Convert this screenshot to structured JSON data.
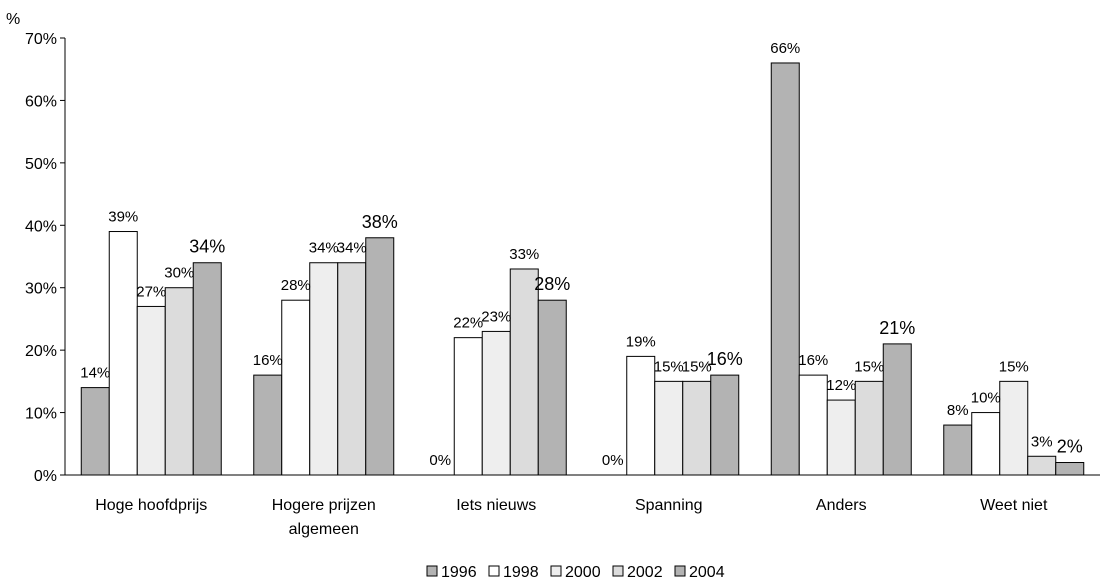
{
  "chart_data": {
    "type": "bar",
    "ylabel": "%",
    "ylim": [
      0,
      70
    ],
    "yticks": [
      "0%",
      "10%",
      "20%",
      "30%",
      "40%",
      "50%",
      "60%",
      "70%"
    ],
    "categories": [
      [
        "Hoge hoofdprijs"
      ],
      [
        "Hogere prijzen",
        "algemeen"
      ],
      [
        "Iets nieuws"
      ],
      [
        "Spanning"
      ],
      [
        "Anders"
      ],
      [
        "Weet niet"
      ]
    ],
    "series": [
      {
        "name": "1996",
        "color": "#b3b3b3",
        "values": [
          14,
          16,
          0,
          0,
          66,
          8
        ],
        "labels": [
          "14%",
          "16%",
          "0%",
          "0%",
          "66%",
          "8%"
        ]
      },
      {
        "name": "1998",
        "color": "#ffffff",
        "values": [
          39,
          28,
          22,
          19,
          16,
          10
        ],
        "labels": [
          "39%",
          "28%",
          "22%",
          "19%",
          "16%",
          "10%"
        ]
      },
      {
        "name": "2000",
        "color": "#eeeeee",
        "values": [
          27,
          34,
          23,
          15,
          12,
          15
        ],
        "labels": [
          "27%",
          "34%",
          "23%",
          "15%",
          "12%",
          "15%"
        ]
      },
      {
        "name": "2002",
        "color": "#dcdcdc",
        "values": [
          30,
          34,
          33,
          15,
          15,
          3
        ],
        "labels": [
          "30%",
          "34%",
          "33%",
          "15%",
          "15%",
          "3%"
        ]
      },
      {
        "name": "2004",
        "color": "#b3b3b3",
        "values": [
          34,
          38,
          28,
          16,
          21,
          2
        ],
        "labels": [
          "34%",
          "38%",
          "28%",
          "16%",
          "21%",
          "2%"
        ]
      }
    ],
    "legend_position": "bottom",
    "grid": false
  }
}
